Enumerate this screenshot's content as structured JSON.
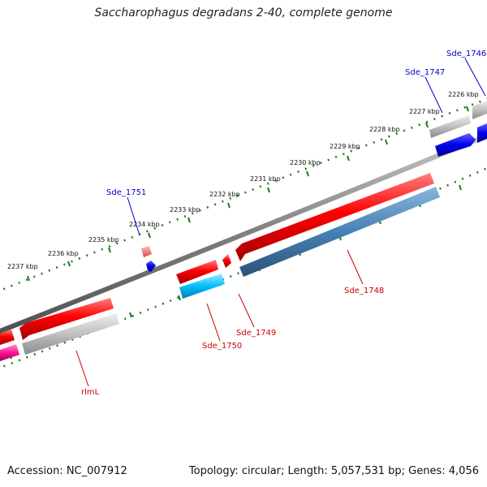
{
  "title": "Saccharophagus degradans 2-40, complete genome",
  "footer": {
    "accession": "Accession: NC_007912",
    "stats": "Topology: circular; Length: 5,057,531 bp; Genes: 4,056"
  },
  "ticks": [
    "2226 kbp",
    "2227 kbp",
    "2228 kbp",
    "2229 kbp",
    "2230 kbp",
    "2231 kbp",
    "2232 kbp",
    "2233 kbp",
    "2234 kbp",
    "2235 kbp",
    "2236 kbp",
    "2237 kbp"
  ],
  "gene_labels": [
    "Sde_1746",
    "Sde_1747",
    "Sde_1751",
    "Sde_1748",
    "Sde_1749",
    "Sde_1750",
    "rlmL"
  ],
  "colors": {
    "backbone": "#808080",
    "tick": "#1f7a1f",
    "label_forward": "#0000cc",
    "label_reverse": "#cc0000",
    "gene_red": "#e41a1c",
    "gene_gray": "#b3b3b3",
    "gene_blue": "#0000ee",
    "gene_steelblue": "#4682b4",
    "gene_cyan": "#00bfff",
    "gene_magenta": "#ff1493",
    "gene_pink": "#f08080"
  }
}
